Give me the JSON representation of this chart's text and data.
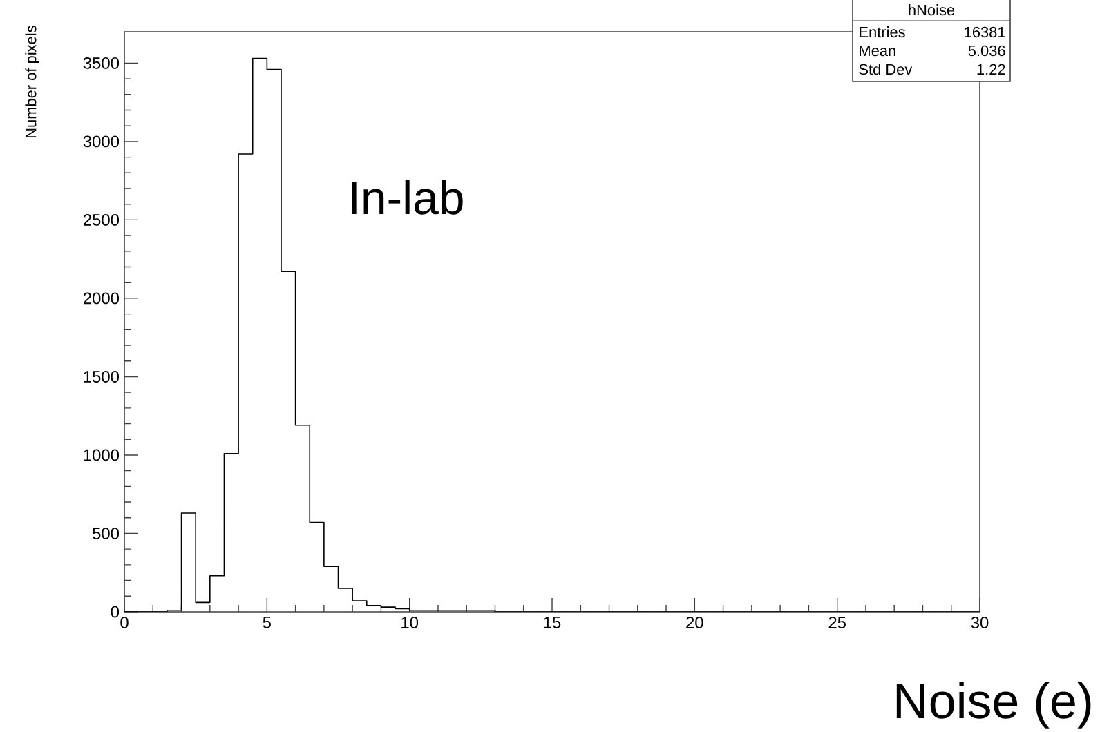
{
  "chart_data": {
    "type": "histogram",
    "xlabel": "Noise (e)",
    "ylabel": "Number of pixels",
    "bins": [
      0,
      0.5,
      1,
      1.5,
      2,
      2.5,
      3,
      3.5,
      4,
      4.5,
      5,
      5.5,
      6,
      6.5,
      7,
      7.5,
      8,
      8.5,
      9,
      9.5,
      10,
      10.5,
      11,
      11.5,
      12,
      12.5,
      13,
      13.5,
      14,
      14.5,
      15,
      15.5,
      16,
      16.5,
      17,
      17.5,
      18,
      18.5,
      19,
      19.5,
      20,
      20.5,
      21,
      21.5,
      22,
      22.5,
      23,
      23.5,
      24,
      24.5,
      25,
      25.5,
      26,
      26.5,
      27,
      27.5,
      28,
      28.5,
      29,
      29.5,
      30
    ],
    "values": [
      0,
      0,
      0,
      10,
      630,
      60,
      230,
      1010,
      2920,
      3530,
      3460,
      2170,
      1190,
      570,
      290,
      150,
      70,
      40,
      30,
      20,
      10,
      10,
      10,
      10,
      10,
      10,
      0,
      0,
      0,
      0,
      0,
      0,
      0,
      0,
      0,
      0,
      0,
      0,
      0,
      0,
      0,
      0,
      0,
      0,
      0,
      0,
      0,
      0,
      0,
      0,
      0,
      0,
      0,
      0,
      0,
      0,
      0,
      0,
      0,
      0
    ],
    "color": "#000000",
    "xlim": [
      0,
      30
    ],
    "xticks": [
      0,
      5,
      10,
      15,
      20,
      25,
      30
    ],
    "ylim": [
      0,
      3700
    ],
    "yticks": [
      0,
      500,
      1000,
      1500,
      2000,
      2500,
      3000,
      3500
    ],
    "grid": false,
    "annotations": [
      "In-lab",
      "hNoise",
      "Entries",
      "16381",
      "Mean",
      "5.036",
      "Std Dev",
      "1.22"
    ]
  }
}
